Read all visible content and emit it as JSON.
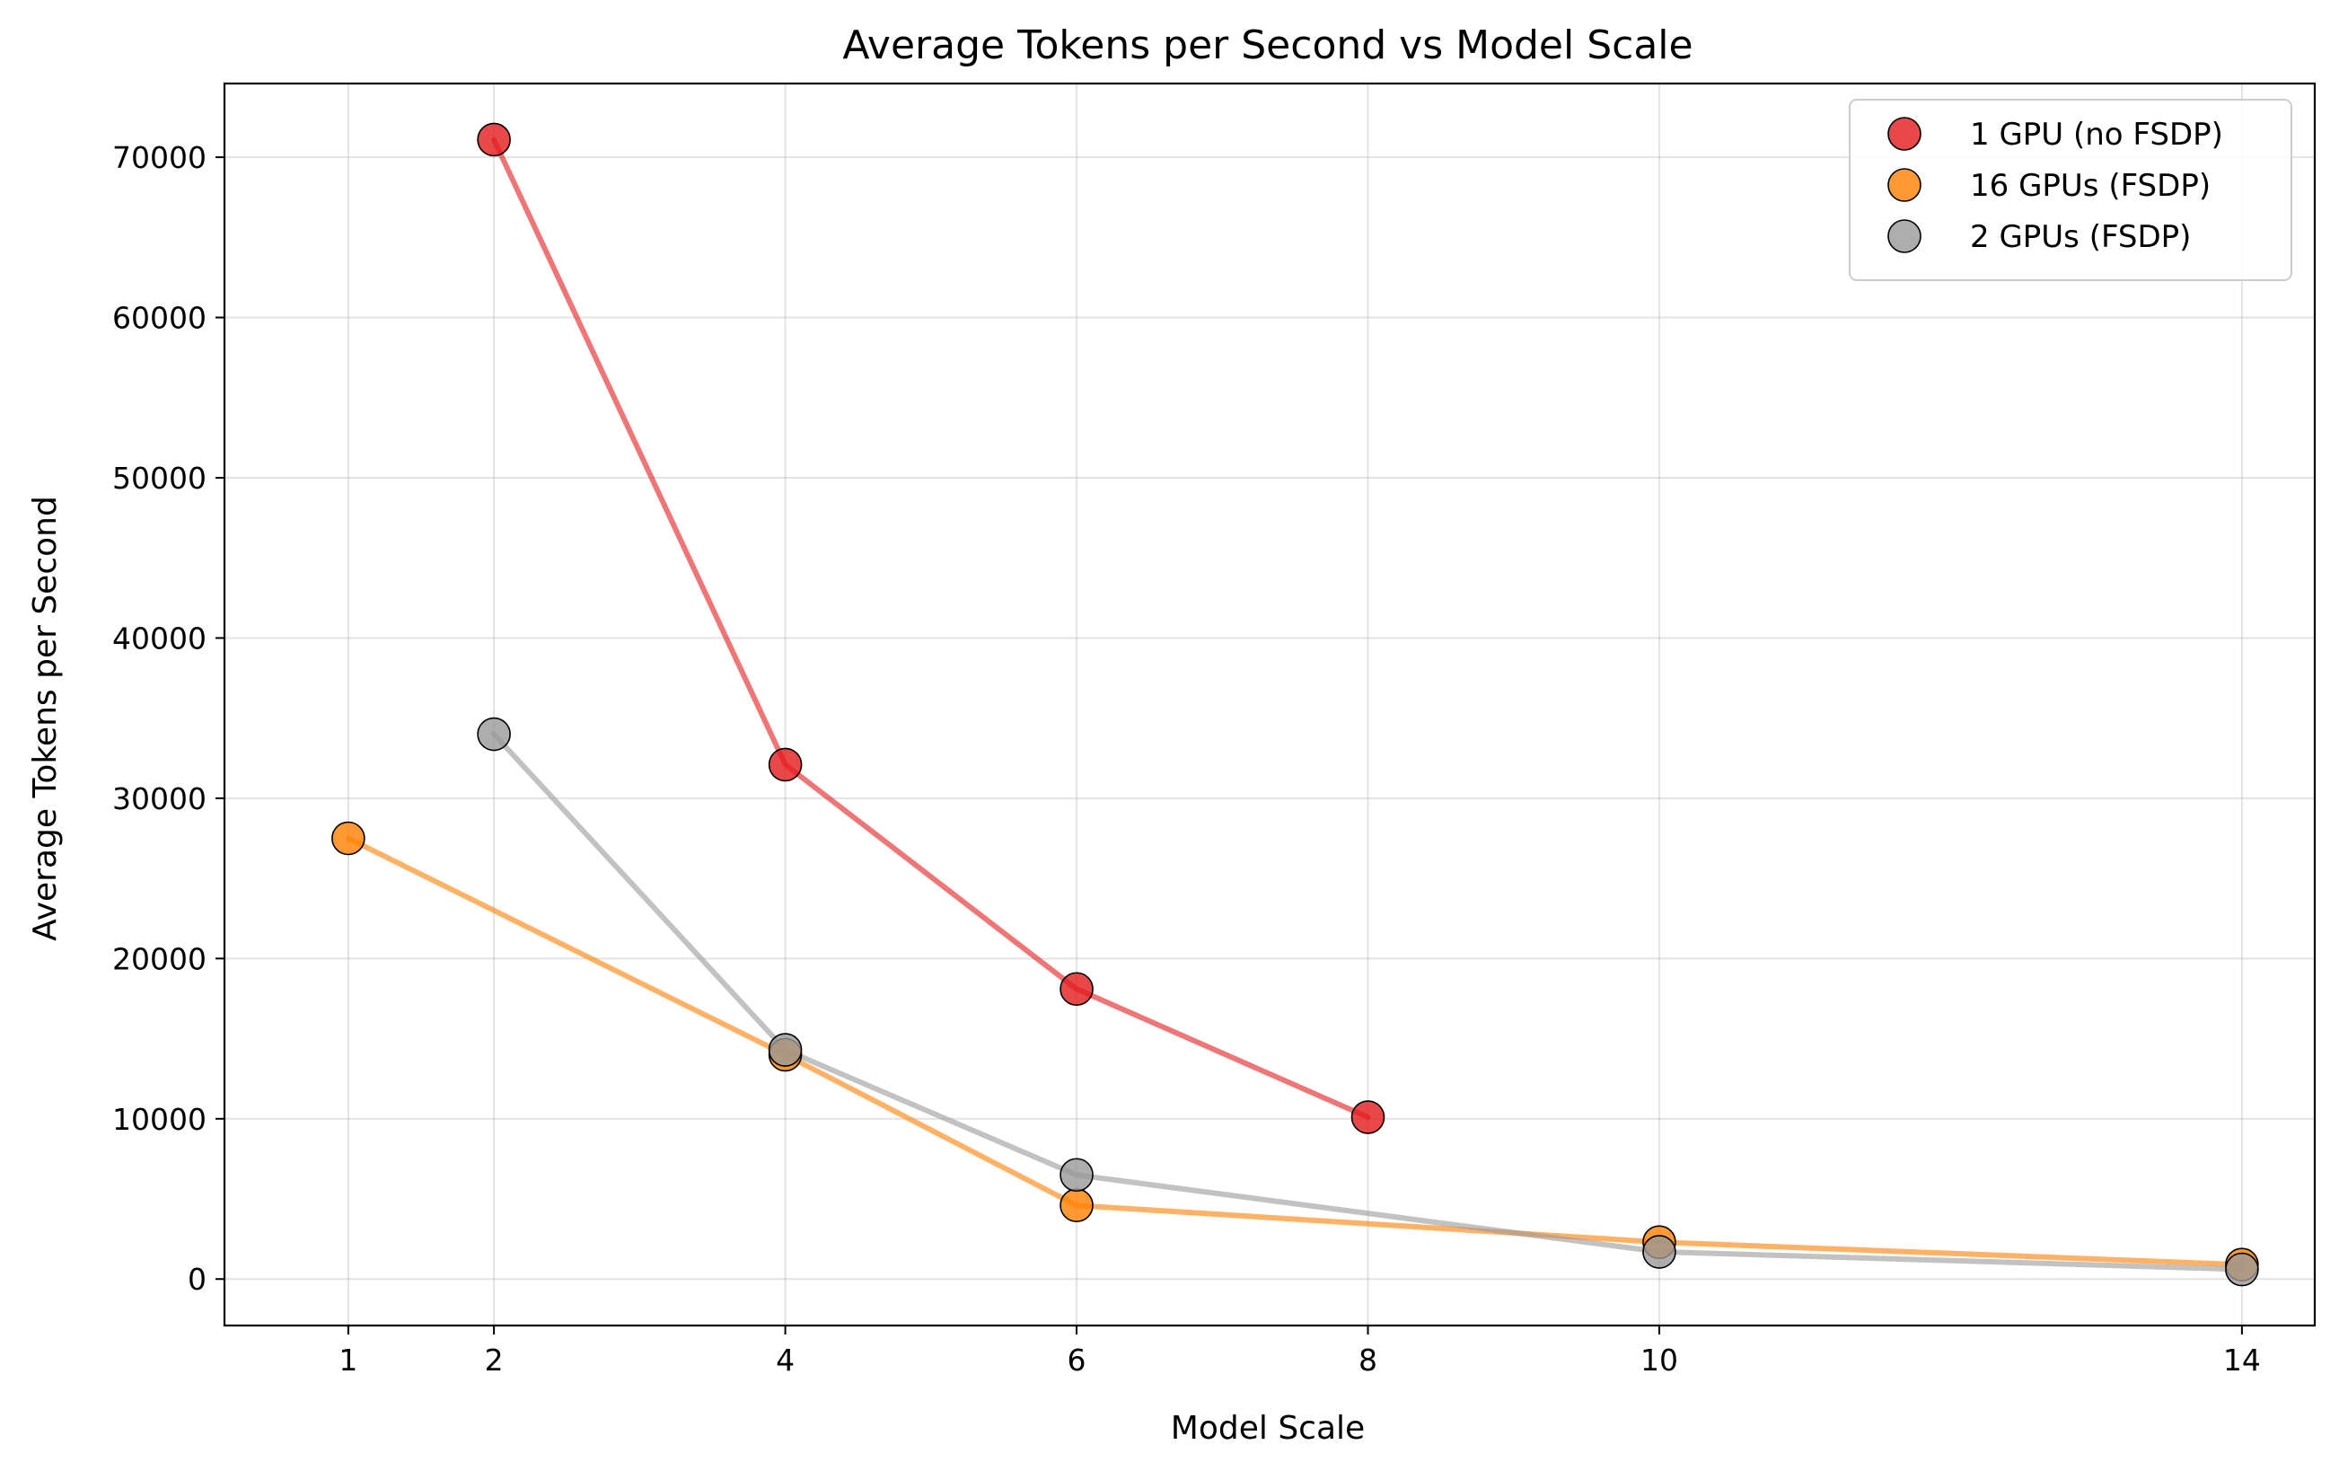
{
  "chart_data": {
    "type": "line",
    "title": "Average Tokens per Second vs Model Scale",
    "xlabel": "Model Scale",
    "ylabel": "Average Tokens per Second",
    "xlim": [
      0.15,
      14.5
    ],
    "ylim": [
      -2900,
      74600
    ],
    "xticks": [
      1,
      2,
      4,
      6,
      8,
      10,
      14
    ],
    "yticks": [
      0,
      10000,
      20000,
      30000,
      40000,
      50000,
      60000,
      70000
    ],
    "grid": true,
    "legend_position": "top-right",
    "series": [
      {
        "name": "1 GPU (no FSDP)",
        "color": "#e41a1c",
        "x": [
          2,
          4,
          6,
          8
        ],
        "values": [
          71100,
          32100,
          18100,
          10100
        ]
      },
      {
        "name": "16 GPUs (FSDP)",
        "color": "#ff7f00",
        "x": [
          1,
          4,
          6,
          10,
          14
        ],
        "values": [
          27500,
          14000,
          4600,
          2300,
          900
        ]
      },
      {
        "name": "2 GPUs (FSDP)",
        "color": "#999999",
        "x": [
          2,
          4,
          6,
          10,
          14
        ],
        "values": [
          34000,
          14300,
          6500,
          1700,
          600
        ]
      }
    ]
  }
}
